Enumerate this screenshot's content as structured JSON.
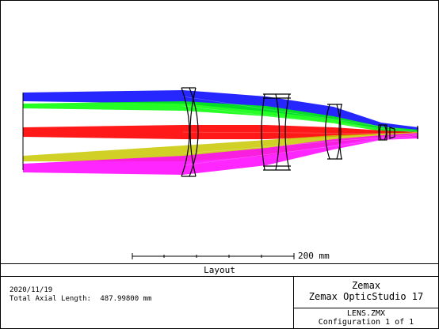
{
  "colors": {
    "field_1": "#0000ff",
    "field_2": "#00ff00",
    "field_3": "#ff0000",
    "field_4": "#c8c800",
    "field_5": "#ff00ff",
    "lens_outline": "#000000"
  },
  "layout": {
    "scale_bar_label": "200 mm",
    "caption": "Layout"
  },
  "info": {
    "date": "2020/11/19",
    "total_axial_length_label": "Total Axial Length:",
    "total_axial_length_value": "487.99800 mm",
    "company": "Zemax",
    "product": "Zemax OpticStudio 17",
    "file": "LENS.ZMX",
    "configuration": "Configuration 1 of 1"
  }
}
